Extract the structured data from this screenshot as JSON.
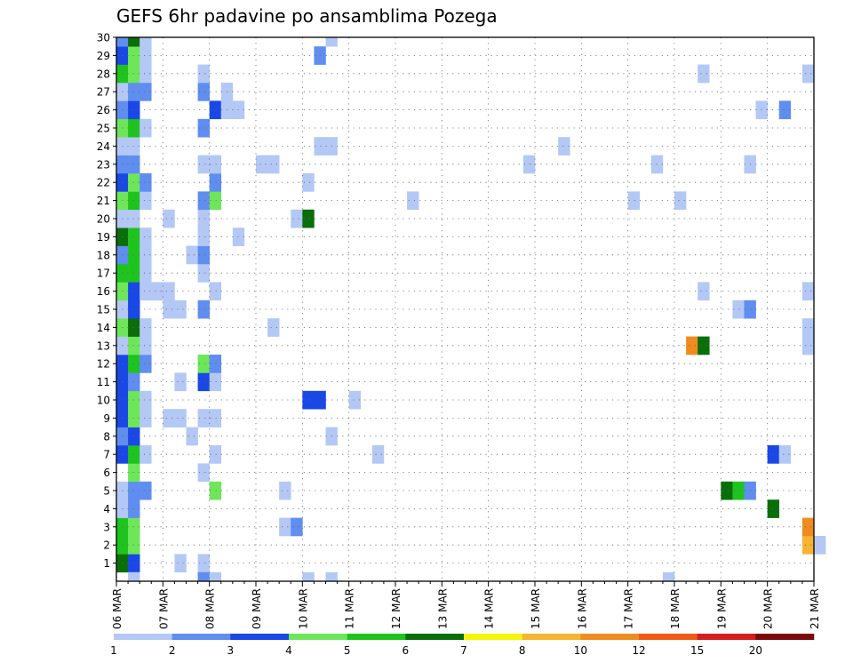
{
  "chart_data": {
    "type": "heatmap",
    "title": "GEFS 6hr padavine po ansamblima Pozega",
    "x_tick_labels": [
      "06 MAR",
      "07 MAR",
      "08 MAR",
      "09 MAR",
      "10 MAR",
      "11 MAR",
      "12 MAR",
      "13 MAR",
      "14 MAR",
      "15 MAR",
      "16 MAR",
      "17 MAR",
      "18 MAR",
      "19 MAR",
      "20 MAR",
      "21 MAR"
    ],
    "y_tick_labels": [
      "1",
      "2",
      "3",
      "4",
      "5",
      "6",
      "7",
      "8",
      "9",
      "10",
      "11",
      "12",
      "13",
      "14",
      "15",
      "16",
      "17",
      "18",
      "19",
      "20",
      "21",
      "22",
      "23",
      "24",
      "25",
      "26",
      "27",
      "28",
      "29",
      "30"
    ],
    "xlim_steps": [
      0,
      60
    ],
    "ylim_members": [
      0,
      30
    ],
    "grid": true,
    "colorbar": {
      "labels": [
        "1",
        "2",
        "3",
        "4",
        "5",
        "6",
        "7",
        "8",
        "10",
        "12",
        "15",
        "20"
      ],
      "colors": [
        "#b4c8f5",
        "#5f8ef0",
        "#1948e6",
        "#6ee65a",
        "#1ec31e",
        "#0a6e0a",
        "#f5f50a",
        "#f5b432",
        "#f08c1e",
        "#f05a14",
        "#d21e1e",
        "#7d0a0a"
      ]
    },
    "cells": [
      [
        1,
        0,
        6
      ],
      [
        1,
        1,
        3
      ],
      [
        1,
        5,
        1
      ],
      [
        1,
        7,
        1
      ],
      [
        2,
        0,
        5
      ],
      [
        2,
        1,
        4
      ],
      [
        2,
        59,
        8
      ],
      [
        2,
        60,
        1
      ],
      [
        3,
        0,
        5
      ],
      [
        3,
        1,
        4
      ],
      [
        3,
        14,
        1
      ],
      [
        3,
        15,
        2
      ],
      [
        3,
        59,
        9
      ],
      [
        4,
        0,
        1
      ],
      [
        4,
        1,
        2
      ],
      [
        4,
        56,
        6
      ],
      [
        5,
        0,
        1
      ],
      [
        5,
        1,
        2
      ],
      [
        5,
        2,
        2
      ],
      [
        5,
        8,
        4
      ],
      [
        5,
        14,
        1
      ],
      [
        5,
        52,
        6
      ],
      [
        5,
        53,
        5
      ],
      [
        5,
        54,
        2
      ],
      [
        6,
        1,
        4
      ],
      [
        6,
        7,
        1
      ],
      [
        7,
        0,
        3
      ],
      [
        7,
        1,
        5
      ],
      [
        7,
        2,
        1
      ],
      [
        7,
        8,
        1
      ],
      [
        7,
        22,
        1
      ],
      [
        7,
        56,
        3
      ],
      [
        7,
        57,
        1
      ],
      [
        8,
        0,
        2
      ],
      [
        8,
        1,
        3
      ],
      [
        8,
        6,
        1
      ],
      [
        8,
        18,
        1
      ],
      [
        9,
        0,
        3
      ],
      [
        9,
        1,
        4
      ],
      [
        9,
        2,
        1
      ],
      [
        9,
        4,
        1
      ],
      [
        9,
        5,
        1
      ],
      [
        9,
        7,
        1
      ],
      [
        9,
        8,
        1
      ],
      [
        10,
        0,
        3
      ],
      [
        10,
        1,
        4
      ],
      [
        10,
        2,
        1
      ],
      [
        10,
        16,
        3
      ],
      [
        10,
        17,
        3
      ],
      [
        10,
        20,
        1
      ],
      [
        11,
        0,
        3
      ],
      [
        11,
        1,
        2
      ],
      [
        11,
        5,
        1
      ],
      [
        11,
        7,
        3
      ],
      [
        11,
        8,
        1
      ],
      [
        12,
        0,
        3
      ],
      [
        12,
        1,
        5
      ],
      [
        12,
        2,
        2
      ],
      [
        12,
        7,
        4
      ],
      [
        12,
        8,
        2
      ],
      [
        13,
        0,
        1
      ],
      [
        13,
        1,
        4
      ],
      [
        13,
        2,
        1
      ],
      [
        13,
        49,
        9
      ],
      [
        13,
        50,
        6
      ],
      [
        13,
        59,
        1
      ],
      [
        14,
        0,
        4
      ],
      [
        14,
        1,
        6
      ],
      [
        14,
        2,
        1
      ],
      [
        14,
        13,
        1
      ],
      [
        14,
        59,
        1
      ],
      [
        15,
        0,
        1
      ],
      [
        15,
        1,
        3
      ],
      [
        15,
        4,
        1
      ],
      [
        15,
        5,
        1
      ],
      [
        15,
        7,
        2
      ],
      [
        15,
        53,
        1
      ],
      [
        15,
        54,
        2
      ],
      [
        16,
        0,
        4
      ],
      [
        16,
        1,
        3
      ],
      [
        16,
        2,
        1
      ],
      [
        16,
        3,
        1
      ],
      [
        16,
        4,
        1
      ],
      [
        16,
        8,
        1
      ],
      [
        16,
        50,
        1
      ],
      [
        16,
        59,
        1
      ],
      [
        17,
        0,
        5
      ],
      [
        17,
        1,
        5
      ],
      [
        17,
        2,
        1
      ],
      [
        17,
        7,
        1
      ],
      [
        18,
        0,
        2
      ],
      [
        18,
        1,
        5
      ],
      [
        18,
        2,
        1
      ],
      [
        18,
        6,
        1
      ],
      [
        18,
        7,
        2
      ],
      [
        19,
        0,
        6
      ],
      [
        19,
        1,
        5
      ],
      [
        19,
        2,
        1
      ],
      [
        19,
        7,
        1
      ],
      [
        19,
        10,
        1
      ],
      [
        20,
        0,
        1
      ],
      [
        20,
        1,
        1
      ],
      [
        20,
        4,
        1
      ],
      [
        20,
        7,
        1
      ],
      [
        20,
        15,
        1
      ],
      [
        20,
        16,
        6
      ],
      [
        21,
        0,
        4
      ],
      [
        21,
        1,
        5
      ],
      [
        21,
        2,
        1
      ],
      [
        21,
        7,
        2
      ],
      [
        21,
        8,
        4
      ],
      [
        21,
        25,
        1
      ],
      [
        21,
        44,
        1
      ],
      [
        21,
        48,
        1
      ],
      [
        22,
        0,
        3
      ],
      [
        22,
        1,
        4
      ],
      [
        22,
        2,
        2
      ],
      [
        22,
        8,
        2
      ],
      [
        22,
        16,
        1
      ],
      [
        23,
        0,
        2
      ],
      [
        23,
        1,
        2
      ],
      [
        23,
        7,
        1
      ],
      [
        23,
        8,
        1
      ],
      [
        23,
        12,
        1
      ],
      [
        23,
        13,
        1
      ],
      [
        23,
        35,
        1
      ],
      [
        23,
        46,
        1
      ],
      [
        23,
        54,
        1
      ],
      [
        24,
        0,
        1
      ],
      [
        24,
        1,
        1
      ],
      [
        24,
        17,
        1
      ],
      [
        24,
        18,
        1
      ],
      [
        24,
        38,
        1
      ],
      [
        25,
        0,
        4
      ],
      [
        25,
        1,
        5
      ],
      [
        25,
        2,
        1
      ],
      [
        25,
        7,
        2
      ],
      [
        26,
        0,
        2
      ],
      [
        26,
        1,
        3
      ],
      [
        26,
        8,
        3
      ],
      [
        26,
        9,
        1
      ],
      [
        26,
        10,
        1
      ],
      [
        26,
        55,
        1
      ],
      [
        26,
        57,
        2
      ],
      [
        27,
        0,
        1
      ],
      [
        27,
        1,
        2
      ],
      [
        27,
        2,
        2
      ],
      [
        27,
        7,
        2
      ],
      [
        27,
        9,
        1
      ],
      [
        28,
        0,
        5
      ],
      [
        28,
        1,
        4
      ],
      [
        28,
        2,
        1
      ],
      [
        28,
        7,
        1
      ],
      [
        28,
        50,
        1
      ],
      [
        28,
        59,
        1
      ],
      [
        29,
        0,
        3
      ],
      [
        29,
        1,
        4
      ],
      [
        29,
        2,
        1
      ],
      [
        29,
        17,
        2
      ],
      [
        30,
        0,
        2
      ],
      [
        30,
        1,
        6
      ],
      [
        30,
        2,
        1
      ],
      [
        30,
        18,
        1
      ],
      [
        0,
        1,
        1
      ],
      [
        0,
        7,
        2
      ],
      [
        0,
        8,
        1
      ],
      [
        0,
        16,
        1
      ],
      [
        0,
        18,
        1
      ],
      [
        0,
        47,
        1
      ]
    ]
  }
}
